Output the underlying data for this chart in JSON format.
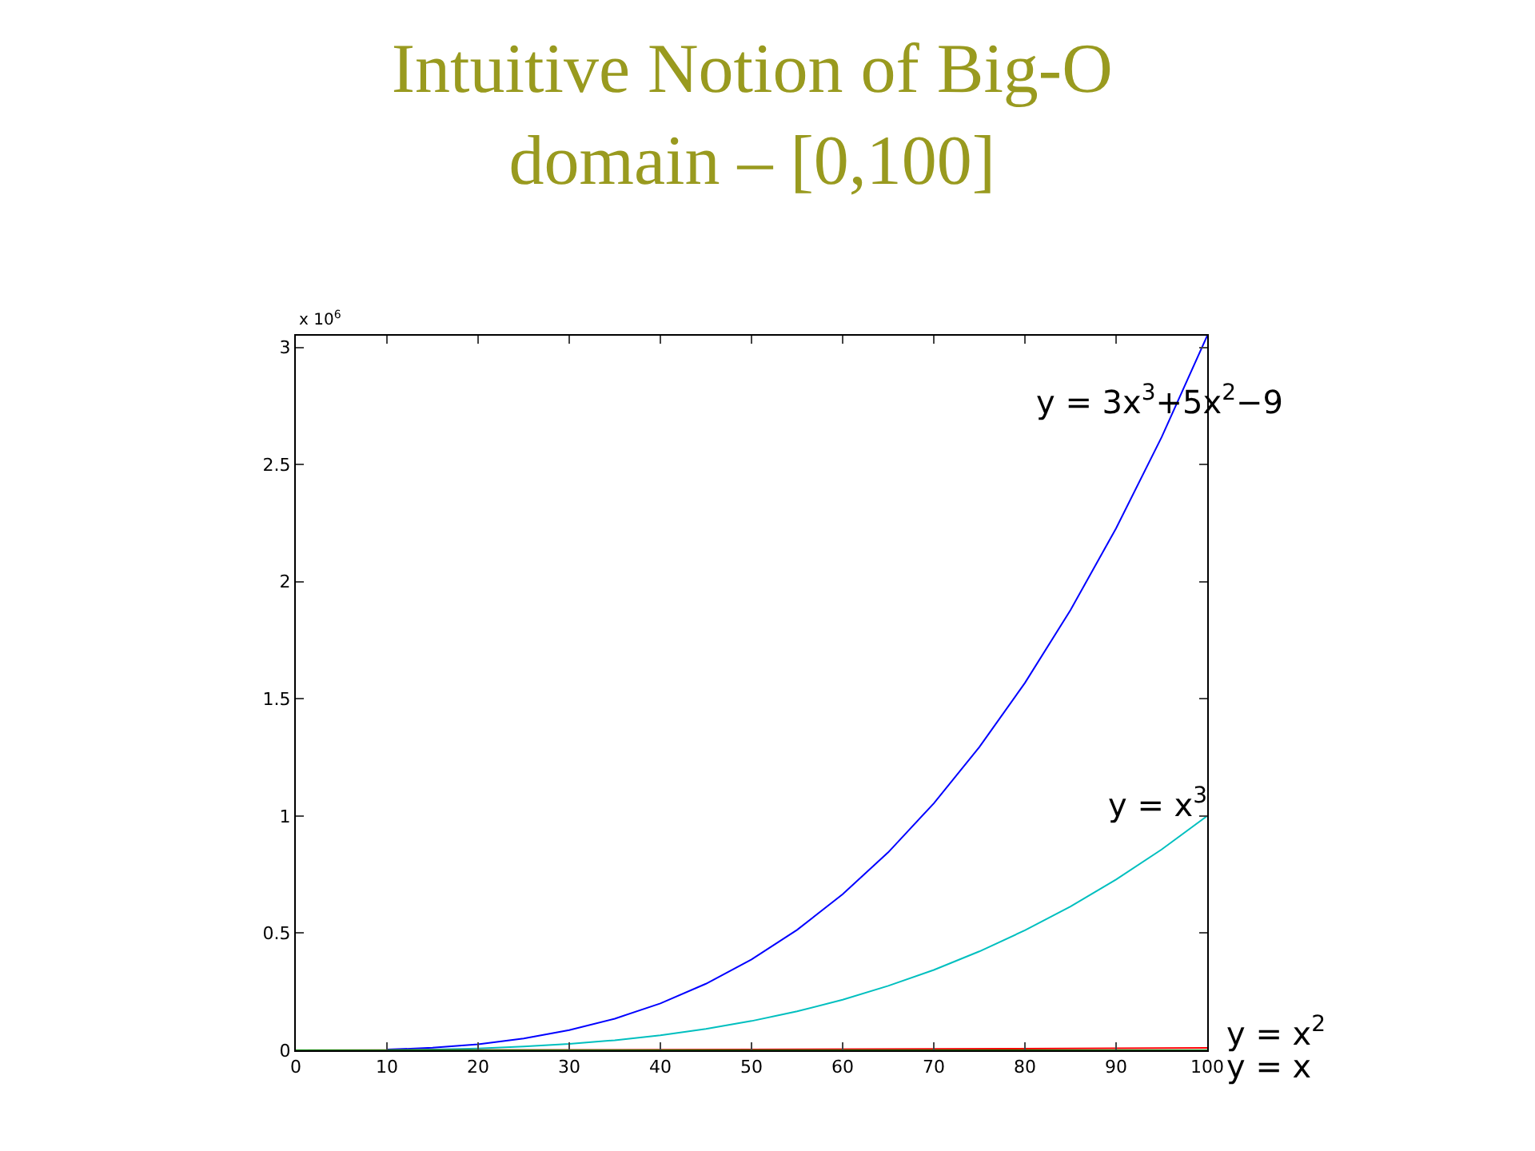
{
  "chart_data": {
    "type": "line",
    "title": "Intuitive Notion of Big-O",
    "subtitle": "domain – [0,100]",
    "x": [
      10,
      15,
      20,
      25,
      30,
      35,
      40,
      45,
      50,
      55,
      60,
      65,
      70,
      75,
      80,
      85,
      90,
      95,
      100
    ],
    "series": [
      {
        "name": "y = 3x$^{3}$+5x$^{2}$−9",
        "color": "#0000ff",
        "values": [
          0.003,
          0.011,
          0.026,
          0.05,
          0.086,
          0.135,
          0.2,
          0.284,
          0.388,
          0.514,
          0.666,
          0.845,
          1.054,
          1.294,
          1.568,
          1.879,
          2.228,
          2.617,
          3.05
        ]
      },
      {
        "name": "y = x$^{3}$",
        "color": "#00bfbf",
        "values": [
          0.001,
          0.003,
          0.008,
          0.016,
          0.027,
          0.043,
          0.064,
          0.091,
          0.125,
          0.166,
          0.216,
          0.275,
          0.343,
          0.422,
          0.512,
          0.614,
          0.729,
          0.857,
          1.0
        ]
      },
      {
        "name": "y = x$^{2}$",
        "color": "#ff0000",
        "x": [
          0,
          50,
          100
        ],
        "values": [
          0,
          0.003,
          0.01
        ]
      },
      {
        "name": "y = x",
        "color": "#008000",
        "x": [
          0,
          100
        ],
        "values": [
          0,
          0
        ]
      }
    ],
    "xlim": [
      0,
      100
    ],
    "xticks": [
      0,
      10,
      20,
      30,
      40,
      50,
      60,
      70,
      80,
      90,
      100
    ],
    "ylim": [
      0,
      3.05
    ],
    "yticks": [
      0,
      0.5,
      1,
      1.5,
      2,
      2.5,
      3
    ],
    "annotations": [
      "x 10$^{6}$"
    ],
    "legend": false,
    "marker": "none",
    "line_style": "solid"
  }
}
